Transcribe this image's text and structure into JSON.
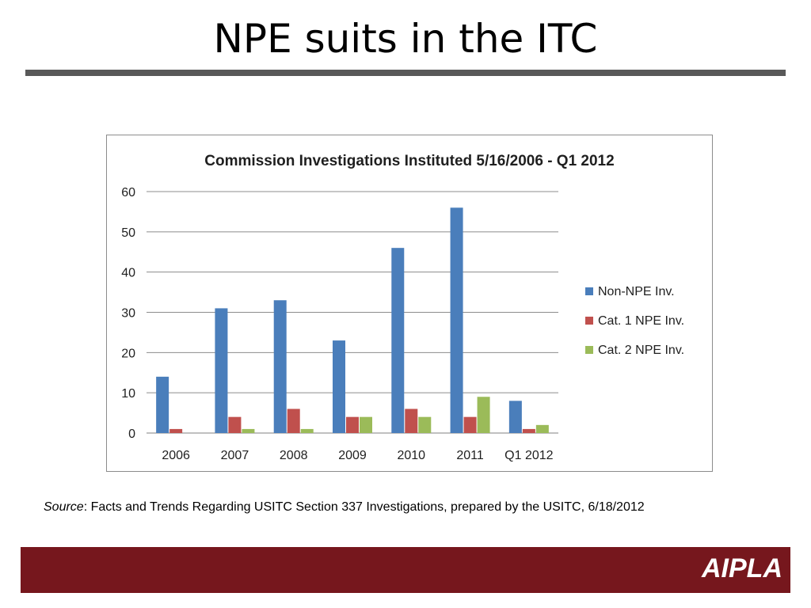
{
  "slide": {
    "title": "NPE suits in the ITC",
    "source_label": "Source",
    "source_text": ":  Facts and Trends Regarding USITC Section 337 Investigations, prepared by the USITC, 6/18/2012",
    "logo": "AIPLA"
  },
  "chart_data": {
    "type": "bar",
    "title": "Commission Investigations Instituted 5/16/2006 - Q1 2012",
    "categories": [
      "2006",
      "2007",
      "2008",
      "2009",
      "2010",
      "2011",
      "Q1 2012"
    ],
    "series": [
      {
        "name": "Non-NPE Inv.",
        "color": "#4a7ebb",
        "values": [
          14,
          31,
          33,
          23,
          46,
          56,
          8
        ]
      },
      {
        "name": "Cat. 1 NPE Inv.",
        "color": "#c0504d",
        "values": [
          1,
          4,
          6,
          4,
          6,
          4,
          1
        ]
      },
      {
        "name": "Cat. 2 NPE Inv.",
        "color": "#9bbb59",
        "values": [
          0,
          1,
          1,
          4,
          4,
          9,
          2
        ]
      }
    ],
    "ylim": [
      0,
      60
    ],
    "yticks": [
      0,
      10,
      20,
      30,
      40,
      50,
      60
    ],
    "grid": true,
    "legend": "right"
  }
}
